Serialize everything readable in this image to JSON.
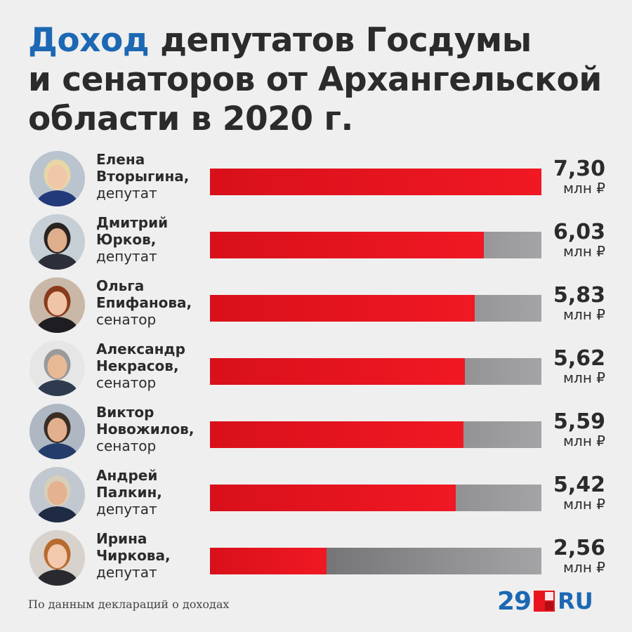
{
  "title": {
    "accent": "Доход",
    "rest_line1": " депутатов Госдумы",
    "line2": "и сенаторов от Архангельской",
    "line3": "области в 2020 г."
  },
  "source": "По данным деклараций о доходах",
  "logo": {
    "number": "29",
    "ru": "RU"
  },
  "colors": {
    "bar_fill": "#e8141e",
    "bar_track": "#7a7a7c",
    "accent": "#1c68b3"
  },
  "chart_data": {
    "type": "bar",
    "title": "Доход депутатов Госдумы и сенаторов от Архангельской области в 2020 г.",
    "unit": "млн ₽",
    "xlim": [
      0,
      7.3
    ],
    "rows": [
      {
        "name_line1": "Елена",
        "name_line2": "Вторыгина,",
        "role": "депутат",
        "value": 7.3,
        "label": "7,30",
        "unit": "млн ₽"
      },
      {
        "name_line1": "Дмитрий",
        "name_line2": "Юрков,",
        "role": "депутат",
        "value": 6.03,
        "label": "6,03",
        "unit": "млн ₽"
      },
      {
        "name_line1": "Ольга",
        "name_line2": "Епифанова,",
        "role": "сенатор",
        "value": 5.83,
        "label": "5,83",
        "unit": "млн ₽"
      },
      {
        "name_line1": "Александр",
        "name_line2": "Некрасов,",
        "role": "сенатор",
        "value": 5.62,
        "label": "5,62",
        "unit": "млн ₽"
      },
      {
        "name_line1": "Виктор",
        "name_line2": "Новожилов,",
        "role": "сенатор",
        "value": 5.59,
        "label": "5,59",
        "unit": "млн ₽"
      },
      {
        "name_line1": "Андрей",
        "name_line2": "Палкин,",
        "role": "депутат",
        "value": 5.42,
        "label": "5,42",
        "unit": "млн ₽"
      },
      {
        "name_line1": "Ирина",
        "name_line2": "Чиркова,",
        "role": "депутат",
        "value": 2.56,
        "label": "2,56",
        "unit": "млн ₽"
      }
    ]
  }
}
